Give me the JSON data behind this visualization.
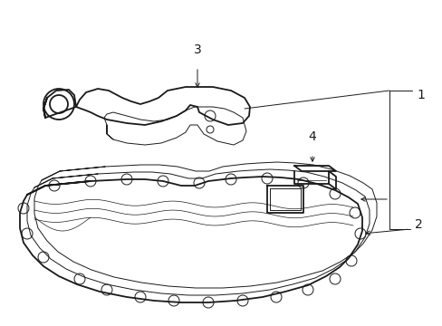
{
  "background_color": "#ffffff",
  "line_color": "#1a1a1a",
  "lw_main": 1.3,
  "lw_thin": 0.7,
  "lw_label": 0.7,
  "label_fontsize": 10,
  "figsize": [
    4.89,
    3.6
  ],
  "dpi": 100
}
